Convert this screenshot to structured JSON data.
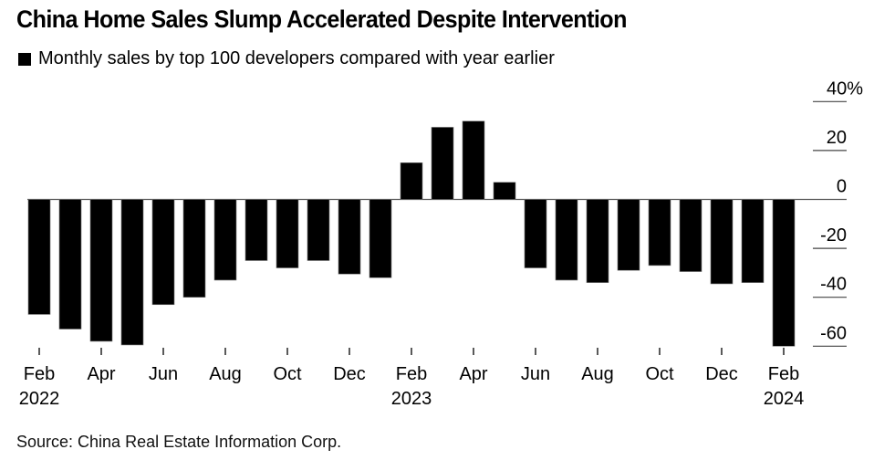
{
  "chart_data": {
    "type": "bar",
    "title": "China Home Sales Slump Accelerated Despite Intervention",
    "legend": [
      {
        "label": "Monthly sales by top 100 developers compared with year earlier",
        "color": "#000000"
      }
    ],
    "legend_position": "top-left",
    "xlabel": "",
    "ylabel": "",
    "y_unit": "%",
    "ylim": [
      -65,
      40
    ],
    "yticks": [
      40,
      20,
      0,
      -20,
      -40,
      -60
    ],
    "ytick_labels": [
      "40%",
      "20",
      "0",
      "-20",
      "-40",
      "-60"
    ],
    "y_axis_position": "right",
    "categories": [
      "Feb 2022",
      "Mar 2022",
      "Apr 2022",
      "May 2022",
      "Jun 2022",
      "Jul 2022",
      "Aug 2022",
      "Sep 2022",
      "Oct 2022",
      "Nov 2022",
      "Dec 2022",
      "Jan 2023",
      "Feb 2023",
      "Mar 2023",
      "Apr 2023",
      "May 2023",
      "Jun 2023",
      "Jul 2023",
      "Aug 2023",
      "Sep 2023",
      "Oct 2023",
      "Nov 2023",
      "Dec 2023",
      "Jan 2024",
      "Feb 2024"
    ],
    "values": [
      -47,
      -53,
      -58,
      -59.5,
      -43,
      -40,
      -33,
      -25,
      -28,
      -25,
      -30.5,
      -32,
      15,
      29.5,
      32,
      7,
      -28,
      -33,
      -34,
      -29,
      -27,
      -29.5,
      -34.5,
      -34,
      -60
    ],
    "xtick_labels": [
      {
        "index": 0,
        "month": "Feb",
        "year": "2022"
      },
      {
        "index": 2,
        "month": "Apr",
        "year": ""
      },
      {
        "index": 4,
        "month": "Jun",
        "year": ""
      },
      {
        "index": 6,
        "month": "Aug",
        "year": ""
      },
      {
        "index": 8,
        "month": "Oct",
        "year": ""
      },
      {
        "index": 10,
        "month": "Dec",
        "year": ""
      },
      {
        "index": 12,
        "month": "Feb",
        "year": "2023"
      },
      {
        "index": 14,
        "month": "Apr",
        "year": ""
      },
      {
        "index": 16,
        "month": "Jun",
        "year": ""
      },
      {
        "index": 18,
        "month": "Aug",
        "year": ""
      },
      {
        "index": 20,
        "month": "Oct",
        "year": ""
      },
      {
        "index": 22,
        "month": "Dec",
        "year": ""
      },
      {
        "index": 24,
        "month": "Feb",
        "year": "2024"
      }
    ],
    "grid": true,
    "bar_color": "#000000",
    "source": "Source: China Real Estate Information Corp."
  }
}
